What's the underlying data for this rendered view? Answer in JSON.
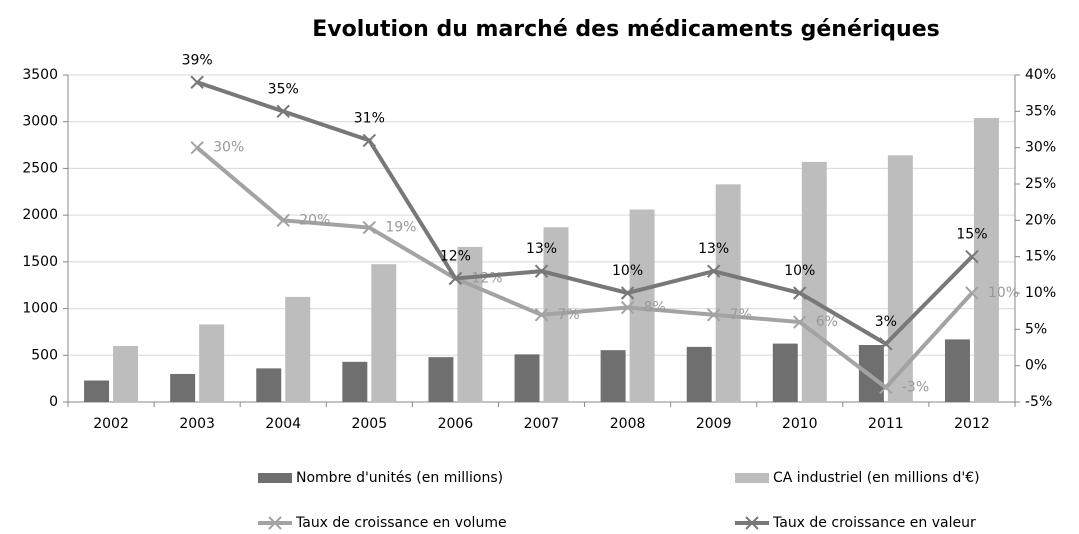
{
  "chart_data": {
    "type": "bar",
    "title": "Evolution du marché des médicaments génériques",
    "categories": [
      "2002",
      "2003",
      "2004",
      "2005",
      "2006",
      "2007",
      "2008",
      "2009",
      "2010",
      "2011",
      "2012"
    ],
    "ylim": [
      0,
      3500
    ],
    "yticks": [
      0,
      500,
      1000,
      1500,
      2000,
      2500,
      3000,
      3500
    ],
    "y2lim": [
      -5,
      40
    ],
    "y2ticks": [
      {
        "value": -5,
        "label": "-5%"
      },
      {
        "value": 0,
        "label": "0%"
      },
      {
        "value": 5,
        "label": "5%"
      },
      {
        "value": 10,
        "label": "10%"
      },
      {
        "value": 15,
        "label": "15%"
      },
      {
        "value": 20,
        "label": "20%"
      },
      {
        "value": 25,
        "label": "25%"
      },
      {
        "value": 30,
        "label": "30%"
      },
      {
        "value": 35,
        "label": "35%"
      },
      {
        "value": 40,
        "label": "40%"
      }
    ],
    "grid": true,
    "legend": "bottom",
    "series": [
      {
        "name": "Nombre d'unités (en millions)",
        "type": "bar",
        "color": "#6f6f6f",
        "values": [
          230,
          300,
          360,
          430,
          480,
          510,
          555,
          590,
          625,
          610,
          670
        ]
      },
      {
        "name": "CA industriel (en millions d'€)",
        "type": "bar",
        "color": "#bdbdbd",
        "values": [
          600,
          830,
          1125,
          1475,
          1660,
          1870,
          2060,
          2330,
          2570,
          2640,
          3040
        ]
      },
      {
        "name": "Taux de croissance en volume",
        "type": "line",
        "axis": "y2",
        "color": "#a3a3a3",
        "values": [
          null,
          30,
          20,
          19,
          12,
          7,
          8,
          7,
          6,
          -3,
          10
        ],
        "value_labels": [
          null,
          "30%",
          "20%",
          "19%",
          "12%",
          "7%",
          "8%",
          "7%",
          "6%",
          "-3%",
          "10%"
        ]
      },
      {
        "name": "Taux de croissance en valeur",
        "type": "line",
        "axis": "y2",
        "color": "#787878",
        "values": [
          null,
          39,
          35,
          31,
          12,
          13,
          10,
          13,
          10,
          3,
          15
        ],
        "value_labels": [
          null,
          "39%",
          "35%",
          "31%",
          "12%",
          "13%",
          "10%",
          "13%",
          "10%",
          "3%",
          "15%"
        ]
      }
    ]
  }
}
